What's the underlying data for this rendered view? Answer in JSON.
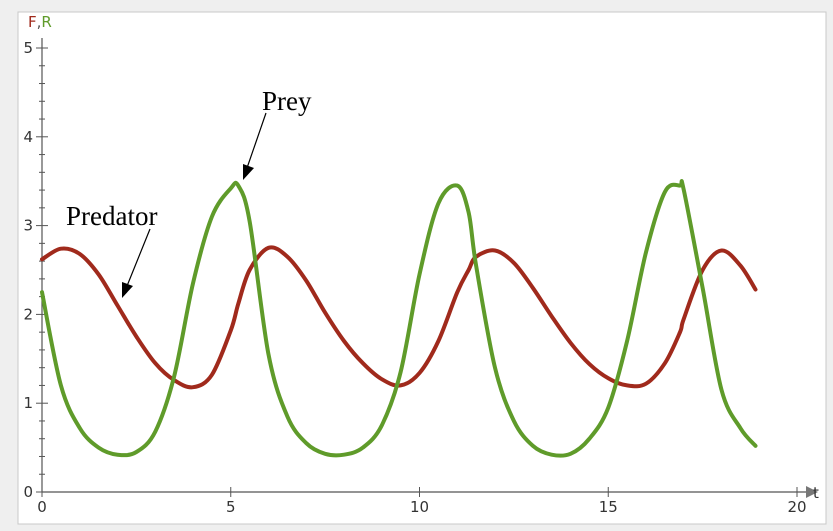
{
  "chart_data": {
    "type": "line",
    "xlabel": "t",
    "ylabel_parts": [
      "F",
      ",",
      "R"
    ],
    "xlim": [
      0,
      20
    ],
    "ylim": [
      0,
      5
    ],
    "x_ticks": [
      "0",
      "5",
      "10",
      "15",
      "20"
    ],
    "y_ticks": [
      "0",
      "1",
      "2",
      "3",
      "4",
      "5"
    ],
    "grid": false,
    "colors": {
      "F": "#a02a1c",
      "R": "#5f9b2a",
      "comma": "#555555"
    },
    "x": [
      0.0,
      0.5,
      1.0,
      1.5,
      2.0,
      2.5,
      3.0,
      3.5,
      4.0,
      4.5,
      5.0,
      5.2,
      5.5,
      6.0,
      6.5,
      7.0,
      7.5,
      8.0,
      8.5,
      9.0,
      9.5,
      10.0,
      10.5,
      11.0,
      11.3,
      11.5,
      12.0,
      12.5,
      13.0,
      13.5,
      14.0,
      14.5,
      15.0,
      15.5,
      16.0,
      16.5,
      16.9,
      17.0,
      17.5,
      18.0,
      18.5,
      18.9
    ],
    "series": [
      {
        "key": "F",
        "values": [
          2.62,
          2.74,
          2.68,
          2.45,
          2.1,
          1.75,
          1.45,
          1.26,
          1.18,
          1.32,
          1.82,
          2.12,
          2.5,
          2.75,
          2.65,
          2.38,
          2.02,
          1.7,
          1.45,
          1.27,
          1.2,
          1.34,
          1.7,
          2.25,
          2.5,
          2.65,
          2.72,
          2.58,
          2.3,
          1.98,
          1.68,
          1.44,
          1.28,
          1.2,
          1.22,
          1.45,
          1.8,
          1.95,
          2.5,
          2.72,
          2.55,
          2.28
        ]
      },
      {
        "key": "R",
        "values": [
          2.25,
          1.2,
          0.72,
          0.5,
          0.42,
          0.45,
          0.68,
          1.3,
          2.35,
          3.1,
          3.42,
          3.45,
          3.05,
          1.55,
          0.85,
          0.55,
          0.43,
          0.42,
          0.5,
          0.75,
          1.35,
          2.45,
          3.25,
          3.45,
          3.15,
          2.55,
          1.4,
          0.8,
          0.52,
          0.42,
          0.43,
          0.6,
          0.95,
          1.7,
          2.7,
          3.38,
          3.45,
          3.4,
          2.3,
          1.15,
          0.72,
          0.52
        ]
      }
    ],
    "annotations": [
      {
        "text": "Prey",
        "target_series": "R"
      },
      {
        "text": "Predator",
        "target_series": "F"
      }
    ]
  }
}
